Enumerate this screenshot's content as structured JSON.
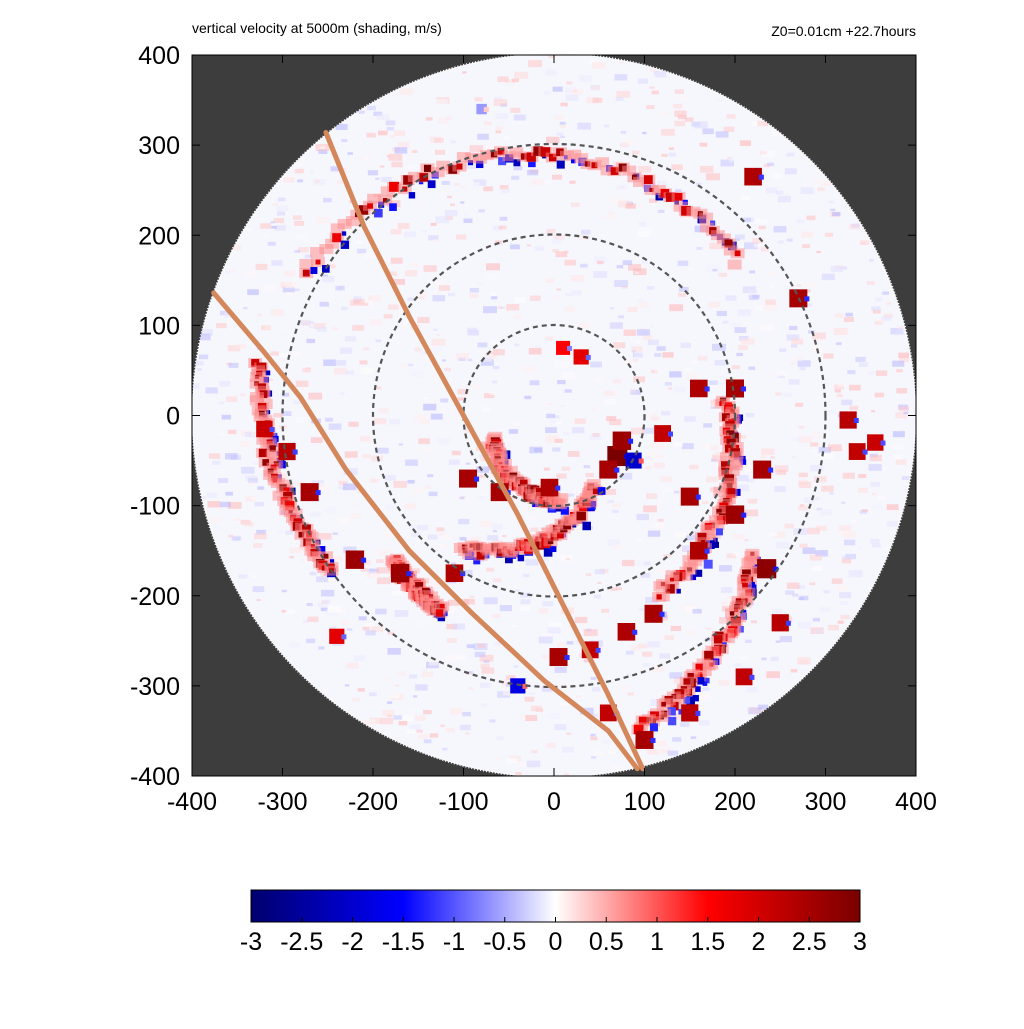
{
  "chart_data": {
    "type": "heatmap",
    "title": "vertical velocity at 5000m (shading, m/s)",
    "subtitle": "Z0=0.01cm  +22.7hours",
    "xlim": [
      -400,
      400
    ],
    "ylim": [
      -400,
      400
    ],
    "xticks": [
      -400,
      -300,
      -200,
      -100,
      0,
      100,
      200,
      300,
      400
    ],
    "yticks": [
      -400,
      -300,
      -200,
      -100,
      0,
      100,
      200,
      300,
      400
    ],
    "domain_radius": 400,
    "reference_circle_radii": [
      100,
      200,
      300
    ],
    "colorbar": {
      "min": -3,
      "max": 3,
      "ticks": [
        -3,
        -2.5,
        -2,
        -1.5,
        -1,
        -0.5,
        0,
        0.5,
        1,
        1.5,
        2,
        2.5,
        3
      ],
      "tick_labels": [
        "-3",
        "-2.5",
        "-2",
        "-1.5",
        "-1",
        "-0.5",
        "0",
        "0.5",
        "1",
        "1.5",
        "2",
        "2.5",
        "3"
      ],
      "colors": [
        "#00006e",
        "#0000ff",
        "#ffffff",
        "#ff0000",
        "#7a0000"
      ]
    },
    "outside_domain_color": "#3d3d3d",
    "tracks": [
      {
        "color": "#d4875a",
        "points": [
          [
            -252,
            314
          ],
          [
            -210,
            210
          ],
          [
            -160,
            110
          ],
          [
            -100,
            0
          ],
          [
            -40,
            -110
          ],
          [
            10,
            -210
          ],
          [
            60,
            -310
          ],
          [
            98,
            -392
          ]
        ]
      },
      {
        "color": "#d4875a",
        "points": [
          [
            -376,
            136
          ],
          [
            -320,
            70
          ],
          [
            -280,
            20
          ],
          [
            -230,
            -60
          ],
          [
            -160,
            -150
          ],
          [
            -90,
            -220
          ],
          [
            -10,
            -295
          ],
          [
            60,
            -350
          ],
          [
            92,
            -392
          ]
        ]
      }
    ],
    "features": [
      {
        "name": "outer spiral band",
        "r_start": 318,
        "r_end": 265,
        "theta_start_deg": 150,
        "theta_end_deg": 40,
        "sign": 1
      },
      {
        "name": "west spiral band",
        "r_start": 330,
        "r_end": 300,
        "theta_start_deg": 170,
        "theta_end_deg": 215,
        "sign": 1
      },
      {
        "name": "south-west band",
        "r_start": 240,
        "r_end": 250,
        "theta_start_deg": 222,
        "theta_end_deg": 240,
        "sign": 1
      },
      {
        "name": "inner band",
        "r_start": 180,
        "r_end": 90,
        "theta_start_deg": 235,
        "theta_end_deg": 300,
        "sign": 1
      },
      {
        "name": "eyewall arc",
        "r_start": 75,
        "r_end": 95,
        "theta_start_deg": 200,
        "theta_end_deg": 275,
        "sign": 1
      },
      {
        "name": "eastern rainband",
        "r_start": 190,
        "r_end": 230,
        "theta_start_deg": 5,
        "theta_end_deg": -60,
        "sign": 1
      },
      {
        "name": "south-east band",
        "r_start": 270,
        "r_end": 360,
        "theta_start_deg": -35,
        "theta_end_deg": -75,
        "sign": 1
      }
    ],
    "cells": [
      {
        "x": 70,
        "y": -45,
        "w": 3
      },
      {
        "x": 75,
        "y": -28,
        "w": 2.6
      },
      {
        "x": 60,
        "y": -60,
        "w": 2.5
      },
      {
        "x": 88,
        "y": -50,
        "w": -2
      },
      {
        "x": 10,
        "y": 75,
        "w": 1.5
      },
      {
        "x": -95,
        "y": -70,
        "w": 2.5
      },
      {
        "x": -60,
        "y": -85,
        "w": 2.5
      },
      {
        "x": -5,
        "y": -80,
        "w": 2.4
      },
      {
        "x": 30,
        "y": 65,
        "w": 1.8
      },
      {
        "x": 120,
        "y": -20,
        "w": 2.2
      },
      {
        "x": 150,
        "y": -90,
        "w": 2.5
      },
      {
        "x": 160,
        "y": 30,
        "w": 2.4
      },
      {
        "x": 200,
        "y": 30,
        "w": 2.5
      },
      {
        "x": 200,
        "y": -110,
        "w": 2.6
      },
      {
        "x": 235,
        "y": -170,
        "w": 2.8
      },
      {
        "x": 230,
        "y": -60,
        "w": 2.5
      },
      {
        "x": 160,
        "y": -150,
        "w": 2.4
      },
      {
        "x": 110,
        "y": -220,
        "w": 2.5
      },
      {
        "x": 80,
        "y": -240,
        "w": 2.4
      },
      {
        "x": 40,
        "y": -260,
        "w": 2.2
      },
      {
        "x": 5,
        "y": -268,
        "w": 2.5
      },
      {
        "x": -40,
        "y": -300,
        "w": -1.8
      },
      {
        "x": -270,
        "y": -85,
        "w": 2.5
      },
      {
        "x": -295,
        "y": -40,
        "w": 2.3
      },
      {
        "x": -320,
        "y": -15,
        "w": 2.1
      },
      {
        "x": -220,
        "y": -160,
        "w": 2.6
      },
      {
        "x": -170,
        "y": -175,
        "w": 2.6
      },
      {
        "x": -110,
        "y": -175,
        "w": 2.4
      },
      {
        "x": -80,
        "y": 340,
        "w": -0.6
      },
      {
        "x": 220,
        "y": 265,
        "w": 2.4
      },
      {
        "x": 270,
        "y": 130,
        "w": 2.5
      },
      {
        "x": 325,
        "y": -5,
        "w": 2.3
      },
      {
        "x": 335,
        "y": -40,
        "w": 2.2
      },
      {
        "x": 355,
        "y": -30,
        "w": 2.1
      },
      {
        "x": -240,
        "y": -245,
        "w": 1.8
      },
      {
        "x": 100,
        "y": -360,
        "w": 2.5
      },
      {
        "x": 60,
        "y": -330,
        "w": 2.2
      },
      {
        "x": 150,
        "y": -330,
        "w": 2.3
      },
      {
        "x": 210,
        "y": -290,
        "w": 2.2
      },
      {
        "x": 250,
        "y": -230,
        "w": 2.3
      }
    ]
  }
}
